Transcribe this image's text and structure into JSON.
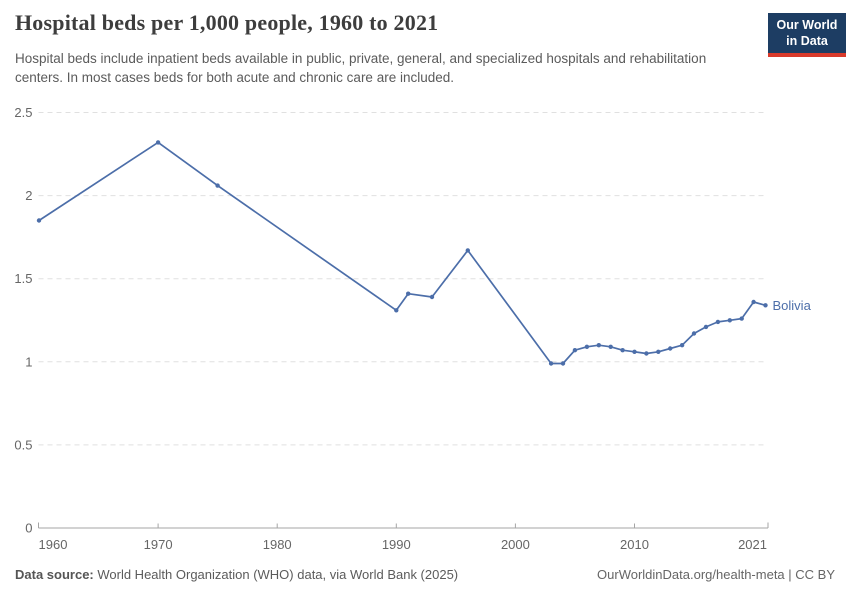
{
  "header": {
    "title": "Hospital beds per 1,000 people, 1960 to 2021",
    "subtitle": "Hospital beds include inpatient beds available in public, private, general, and specialized hospitals and rehabilitation centers. In most cases beds for both acute and chronic care are included.",
    "logo_line1": "Our World",
    "logo_line2": "in Data"
  },
  "chart_data": {
    "type": "line",
    "title": "Hospital beds per 1,000 people, 1960 to 2021",
    "xlabel": "",
    "ylabel": "",
    "xlim": [
      1960,
      2021
    ],
    "ylim": [
      0,
      2.5
    ],
    "x_ticks": [
      1960,
      1970,
      1980,
      1990,
      2000,
      2010,
      2021
    ],
    "y_ticks": [
      0,
      0.5,
      1,
      1.5,
      2,
      2.5
    ],
    "grid": "horizontal-dashed",
    "legend_position": "end-of-line-label",
    "series": [
      {
        "name": "Bolivia",
        "color": "#4c6ea9",
        "points": [
          [
            1960,
            1.85
          ],
          [
            1970,
            2.32
          ],
          [
            1975,
            2.06
          ],
          [
            1990,
            1.31
          ],
          [
            1991,
            1.41
          ],
          [
            1993,
            1.39
          ],
          [
            1996,
            1.67
          ],
          [
            2003,
            0.99
          ],
          [
            2004,
            0.99
          ],
          [
            2005,
            1.07
          ],
          [
            2006,
            1.09
          ],
          [
            2007,
            1.1
          ],
          [
            2008,
            1.09
          ],
          [
            2009,
            1.07
          ],
          [
            2010,
            1.06
          ],
          [
            2011,
            1.05
          ],
          [
            2012,
            1.06
          ],
          [
            2013,
            1.08
          ],
          [
            2014,
            1.1
          ],
          [
            2015,
            1.17
          ],
          [
            2016,
            1.21
          ],
          [
            2017,
            1.24
          ],
          [
            2018,
            1.25
          ],
          [
            2019,
            1.26
          ],
          [
            2020,
            1.36
          ],
          [
            2021,
            1.34
          ]
        ]
      }
    ],
    "colors": {
      "gridline": "#e0e0e0",
      "axis": "#a5a5a5",
      "tick_label": "#666666"
    }
  },
  "footer": {
    "source_label": "Data source:",
    "source_text": " World Health Organization (WHO) data, via World Bank (2025)",
    "url": "OurWorldinData.org/health-meta",
    "separator": " | ",
    "license": "CC BY"
  }
}
